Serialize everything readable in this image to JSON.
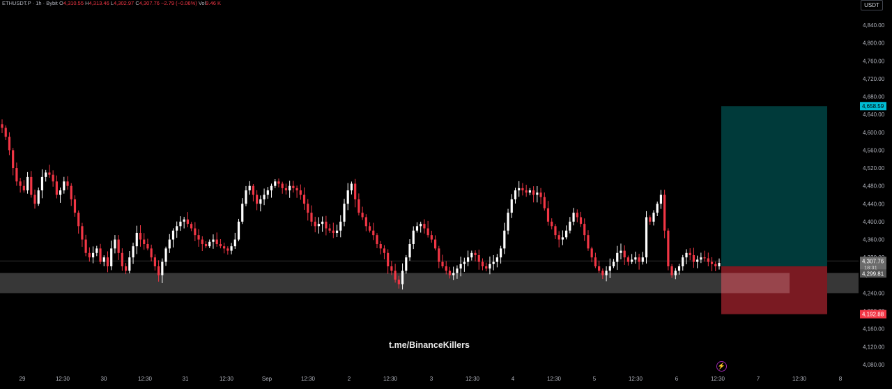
{
  "legend": {
    "symbol": "ETHUSDT.P · 1h · Bybit",
    "o_label": "O",
    "o_value": "4,310.55",
    "h_label": "H",
    "h_value": "4,313.46",
    "l_label": "L",
    "l_value": "4,302.97",
    "c_label": "C",
    "c_value": "4,307.76",
    "change": "−2.79 (−0.06%)",
    "vol_label": "Vol",
    "vol_value": "9.46 K"
  },
  "unit_label": "USDT",
  "watermark": "t.me/BinanceKillers",
  "colors": {
    "up": "#ffffff",
    "down": "#f23645",
    "target_zone": "#003a3a",
    "stop_zone": "#7a1a22",
    "support_band": "#3a3a3a",
    "price_tag_current": "#6b6b6b",
    "price_tag_target": "#00bcd4",
    "price_tag_stop": "#f23645"
  },
  "chart_data": {
    "type": "candlestick",
    "ylim": [
      4060,
      4880
    ],
    "y_ticks": [
      "4,840.00",
      "4,800.00",
      "4,760.00",
      "4,720.00",
      "4,680.00",
      "4,640.00",
      "4,600.00",
      "4,560.00",
      "4,520.00",
      "4,480.00",
      "4,440.00",
      "4,400.00",
      "4,360.00",
      "4,320.00",
      "4,280.00",
      "4,240.00",
      "4,200.00",
      "4,160.00",
      "4,120.00",
      "4,080.00"
    ],
    "x_ticks": [
      "29",
      "12:30",
      "30",
      "12:30",
      "31",
      "12:30",
      "Sep",
      "12:30",
      "2",
      "12:30",
      "3",
      "12:30",
      "4",
      "12:30",
      "5",
      "12:30",
      "6",
      "12:30",
      "7",
      "12:30",
      "8"
    ],
    "price_labels": {
      "current": "4,307.76",
      "countdown": "18:31",
      "support": "4,299.81",
      "target": "4,658.59",
      "stop": "4,192.88"
    },
    "support_zone": [
      4240,
      4285
    ],
    "position": {
      "entry": 4300,
      "target": 4658.59,
      "stop": 4192.88
    },
    "close_path": [
      4610,
      4590,
      4560,
      4520,
      4490,
      4480,
      4470,
      4500,
      4460,
      4440,
      4470,
      4500,
      4510,
      4505,
      4490,
      4460,
      4470,
      4490,
      4480,
      4450,
      4420,
      4390,
      4360,
      4330,
      4320,
      4330,
      4340,
      4310,
      4320,
      4300,
      4340,
      4360,
      4330,
      4300,
      4290,
      4320,
      4345,
      4375,
      4360,
      4350,
      4340,
      4320,
      4300,
      4280,
      4310,
      4340,
      4360,
      4380,
      4390,
      4400,
      4405,
      4395,
      4385,
      4370,
      4360,
      4350,
      4345,
      4355,
      4360,
      4350,
      4345,
      4340,
      4335,
      4345,
      4360,
      4400,
      4440,
      4470,
      4480,
      4460,
      4440,
      4450,
      4460,
      4470,
      4480,
      4490,
      4485,
      4475,
      4470,
      4480,
      4475,
      4470,
      4460,
      4440,
      4420,
      4400,
      4390,
      4395,
      4400,
      4385,
      4380,
      4375,
      4380,
      4400,
      4440,
      4470,
      4485,
      4450,
      4420,
      4410,
      4390,
      4380,
      4370,
      4350,
      4340,
      4330,
      4300,
      4290,
      4270,
      4260,
      4290,
      4320,
      4350,
      4380,
      4390,
      4395,
      4385,
      4370,
      4360,
      4340,
      4310,
      4300,
      4290,
      4280,
      4285,
      4295,
      4305,
      4310,
      4320,
      4330,
      4325,
      4310,
      4300,
      4295,
      4305,
      4310,
      4320,
      4340,
      4380,
      4420,
      4450,
      4470,
      4475,
      4470,
      4465,
      4470,
      4460,
      4465,
      4455,
      4430,
      4400,
      4390,
      4370,
      4360,
      4365,
      4380,
      4400,
      4420,
      4410,
      4395,
      4370,
      4340,
      4320,
      4300,
      4290,
      4280,
      4290,
      4300,
      4310,
      4330,
      4335,
      4320,
      4310,
      4315,
      4320,
      4310,
      4320,
      4410,
      4400,
      4420,
      4440,
      4460,
      4380,
      4300,
      4280,
      4290,
      4300,
      4320,
      4330,
      4325,
      4310,
      4315,
      4320,
      4318,
      4310,
      4305,
      4300,
      4307.76
    ]
  }
}
